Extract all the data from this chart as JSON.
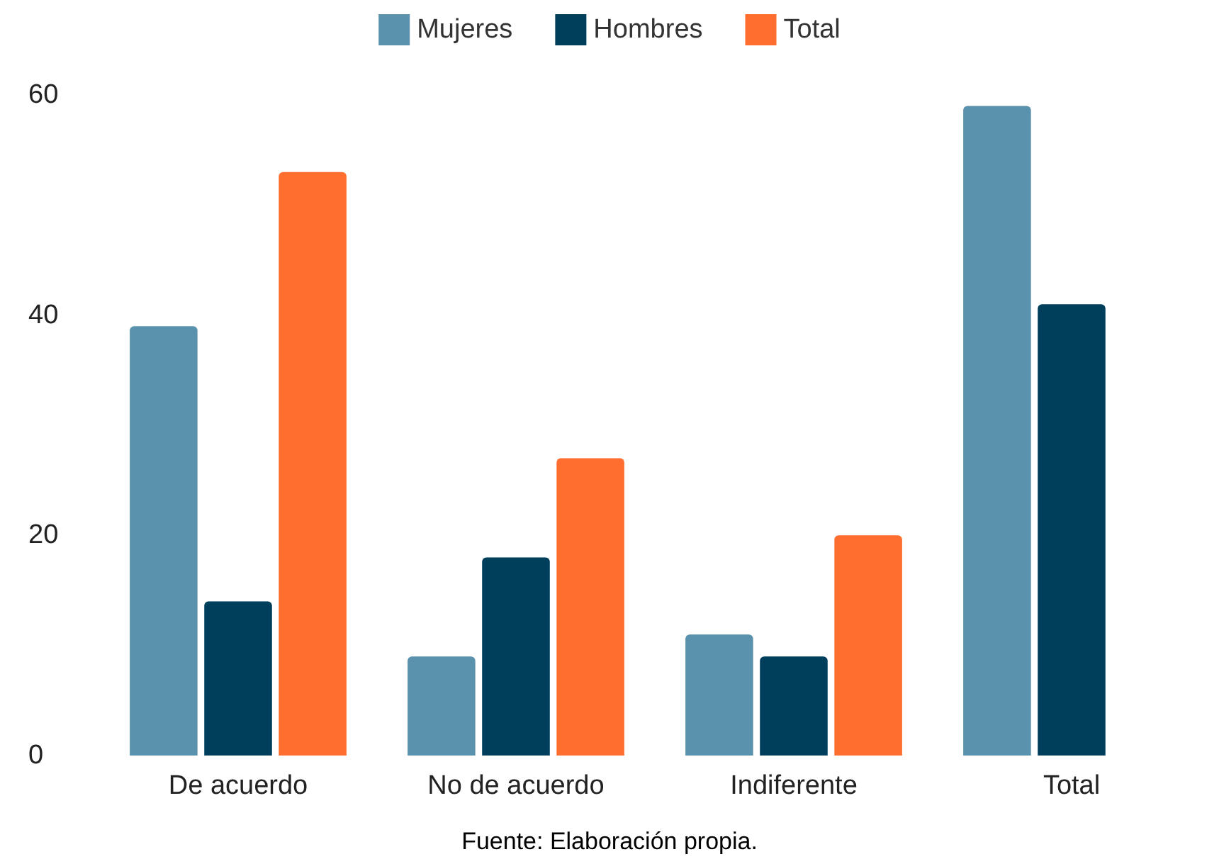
{
  "chart_data": {
    "type": "bar",
    "categories": [
      "De acuerdo",
      "No de acuerdo",
      "Indiferente",
      "Total"
    ],
    "series": [
      {
        "name": "Mujeres",
        "color": "#5a92ad",
        "values": [
          39,
          9,
          11,
          59
        ]
      },
      {
        "name": "Hombres",
        "color": "#003f5c",
        "values": [
          14,
          18,
          9,
          41
        ]
      },
      {
        "name": "Total",
        "color": "#ff6e2f",
        "values": [
          53,
          27,
          20,
          null
        ]
      }
    ],
    "ylim": [
      0,
      60
    ],
    "yticks": [
      0,
      20,
      40,
      60
    ],
    "grid": false,
    "legend": "top",
    "annotations": [
      "Fuente: Elaboración propia."
    ]
  }
}
